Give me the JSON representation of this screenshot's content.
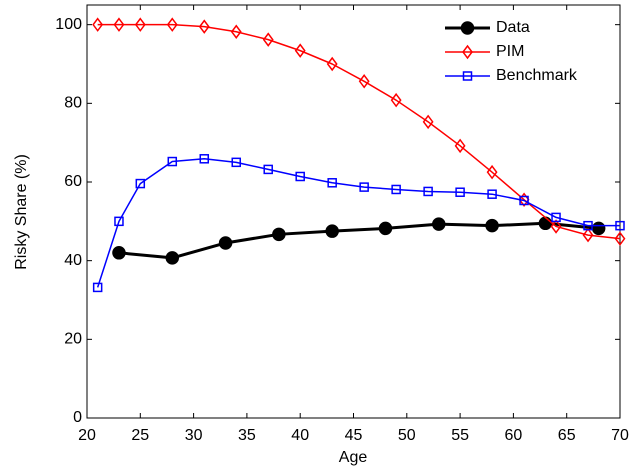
{
  "chart_data": {
    "type": "line",
    "x_label": "Age",
    "y_label": "Risky Share (%)",
    "xlim": [
      20,
      70
    ],
    "xticks": [
      20,
      25,
      30,
      35,
      40,
      45,
      50,
      55,
      60,
      65,
      70
    ],
    "ylim": [
      0,
      105
    ],
    "yticks": [
      0,
      20,
      40,
      60,
      80,
      100
    ],
    "legend": "upper right",
    "series": [
      {
        "name": "Data",
        "color": "#000000",
        "marker": "circle",
        "x": [
          23,
          28,
          33,
          38,
          43,
          48,
          53,
          58,
          63,
          68
        ],
        "values": [
          42,
          40.7,
          44.5,
          46.7,
          47.5,
          48.2,
          49.3,
          48.9,
          49.5,
          48.2
        ]
      },
      {
        "name": "PIM",
        "color": "#ff0000",
        "marker": "diamond",
        "x": [
          21,
          23,
          25,
          28,
          31,
          34,
          37,
          40,
          43,
          46,
          49,
          52,
          55,
          58,
          61,
          64,
          67,
          70
        ],
        "values": [
          100,
          100,
          100,
          100,
          99.5,
          98.2,
          96.2,
          93.4,
          90,
          85.6,
          80.8,
          75.3,
          69.2,
          62.5,
          55.5,
          48.7,
          46.5,
          45.6
        ]
      },
      {
        "name": "Benchmark",
        "color": "#0000ff",
        "marker": "square",
        "x": [
          21,
          23,
          25,
          28,
          31,
          34,
          37,
          40,
          43,
          46,
          49,
          52,
          55,
          58,
          61,
          64,
          67,
          70
        ],
        "values": [
          33.2,
          50,
          59.6,
          65.2,
          65.9,
          65,
          63.2,
          61.4,
          59.8,
          58.7,
          58.1,
          57.6,
          57.4,
          56.9,
          55.3,
          51,
          48.9,
          48.9
        ]
      }
    ]
  }
}
